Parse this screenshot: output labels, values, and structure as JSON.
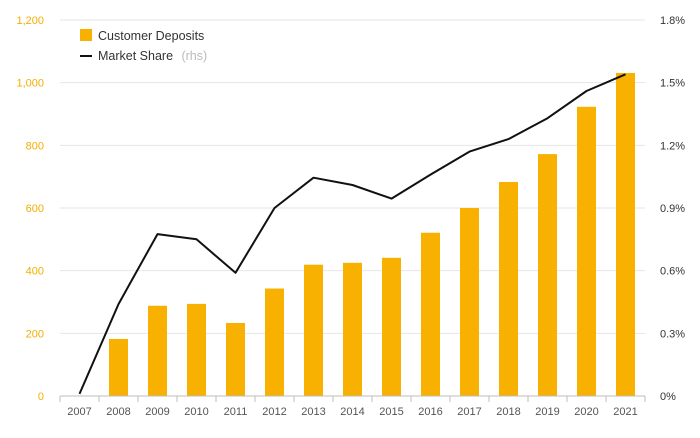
{
  "chart_data": {
    "type": "bar",
    "categories": [
      "2007",
      "2008",
      "2009",
      "2010",
      "2011",
      "2012",
      "2013",
      "2014",
      "2015",
      "2016",
      "2017",
      "2018",
      "2019",
      "2020",
      "2021"
    ],
    "series": [
      {
        "name": "Customer Deposits",
        "type": "bar",
        "axis": "left",
        "color": "#f8b100",
        "values": [
          0,
          182,
          288,
          294,
          233,
          343,
          419,
          425,
          441,
          521,
          600,
          683,
          772,
          923,
          1031
        ]
      },
      {
        "name": "Market Share",
        "name_suffix": "(rhs)",
        "type": "line",
        "axis": "right",
        "color": "#111111",
        "values": [
          0.01,
          0.44,
          0.775,
          0.75,
          0.59,
          0.9,
          1.045,
          1.01,
          0.945,
          1.06,
          1.17,
          1.23,
          1.33,
          1.46,
          1.54
        ]
      }
    ],
    "left_axis": {
      "ylim": [
        0,
        1200
      ],
      "ticks": [
        0,
        200,
        400,
        600,
        800,
        1000,
        1200
      ],
      "tick_labels": [
        "0",
        "200",
        "400",
        "600",
        "800",
        "1,000",
        "1,200"
      ],
      "color": "#f5ad00"
    },
    "right_axis": {
      "ylim": [
        0,
        1.8
      ],
      "ticks": [
        0,
        0.3,
        0.6,
        0.9,
        1.2,
        1.5,
        1.8
      ],
      "tick_labels": [
        "0%",
        "0.3%",
        "0.6%",
        "0.9%",
        "1.2%",
        "1.5%",
        "1.8%"
      ],
      "color": "#333333"
    },
    "grid": true,
    "legend_position": "top-left"
  }
}
